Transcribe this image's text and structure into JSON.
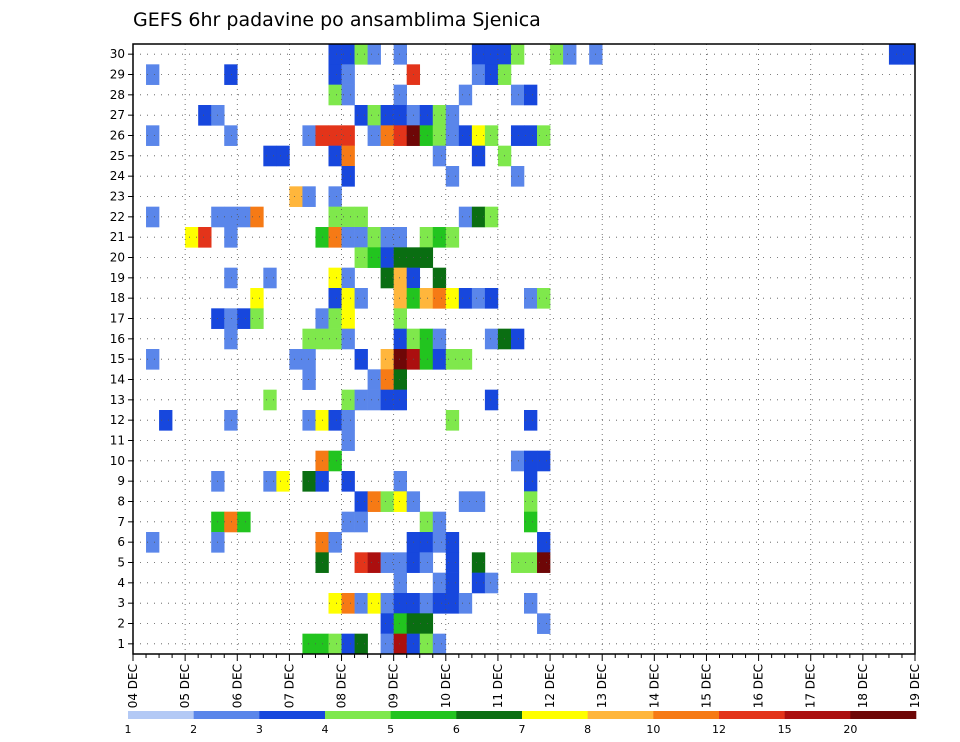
{
  "chart_data": {
    "type": "heatmap",
    "title": "GEFS 6hr padavine po ansamblima Sjenica",
    "xlabel": "",
    "ylabel": "",
    "x_ticks": [
      "04 DEC",
      "05 DEC",
      "06 DEC",
      "07 DEC",
      "08 DEC",
      "09 DEC",
      "10 DEC",
      "11 DEC",
      "12 DEC",
      "13 DEC",
      "14 DEC",
      "15 DEC",
      "16 DEC",
      "17 DEC",
      "18 DEC",
      "19 DEC"
    ],
    "y_ticks": [
      1,
      2,
      3,
      4,
      5,
      6,
      7,
      8,
      9,
      10,
      11,
      12,
      13,
      14,
      15,
      16,
      17,
      18,
      19,
      20,
      21,
      22,
      23,
      24,
      25,
      26,
      27,
      28,
      29,
      30
    ],
    "x_range": [
      "04 DEC 00",
      "19 DEC 00"
    ],
    "x_step_hours": 6,
    "y_range": [
      0,
      30
    ],
    "grid": true,
    "colorbar": {
      "labels": [
        "1",
        "2",
        "3",
        "4",
        "5",
        "6",
        "7",
        "8",
        "10",
        "12",
        "15",
        "20"
      ],
      "colors": [
        "#b3c9f5",
        "#5a86ea",
        "#1747dd",
        "#7fe84c",
        "#22c41f",
        "#0a6e12",
        "#ffff00",
        "#ffb63c",
        "#f67a15",
        "#e3341a",
        "#ab0f0f",
        "#6e0707"
      ]
    },
    "cells": [
      [
        30,
        15,
        2
      ],
      [
        30,
        16,
        2
      ],
      [
        30,
        17,
        3
      ],
      [
        30,
        18,
        1
      ],
      [
        30,
        20,
        1
      ],
      [
        30,
        26,
        2
      ],
      [
        30,
        27,
        2
      ],
      [
        30,
        28,
        2
      ],
      [
        30,
        29,
        3
      ],
      [
        30,
        32,
        3
      ],
      [
        30,
        33,
        1
      ],
      [
        30,
        35,
        1
      ],
      [
        30,
        58,
        2
      ],
      [
        30,
        59,
        2
      ],
      [
        29,
        1,
        1
      ],
      [
        29,
        7,
        2
      ],
      [
        29,
        15,
        2
      ],
      [
        29,
        16,
        1
      ],
      [
        29,
        21,
        9
      ],
      [
        29,
        26,
        1
      ],
      [
        29,
        27,
        2
      ],
      [
        29,
        28,
        3
      ],
      [
        28,
        15,
        3
      ],
      [
        28,
        16,
        1
      ],
      [
        28,
        20,
        1
      ],
      [
        28,
        25,
        1
      ],
      [
        28,
        29,
        1
      ],
      [
        28,
        30,
        2
      ],
      [
        27,
        5,
        2
      ],
      [
        27,
        6,
        1
      ],
      [
        27,
        17,
        2
      ],
      [
        27,
        18,
        3
      ],
      [
        27,
        19,
        2
      ],
      [
        27,
        20,
        2
      ],
      [
        27,
        21,
        1
      ],
      [
        27,
        22,
        2
      ],
      [
        27,
        23,
        3
      ],
      [
        27,
        24,
        1
      ],
      [
        26,
        1,
        1
      ],
      [
        26,
        7,
        1
      ],
      [
        26,
        13,
        1
      ],
      [
        26,
        14,
        9
      ],
      [
        26,
        15,
        9
      ],
      [
        26,
        16,
        9
      ],
      [
        26,
        18,
        1
      ],
      [
        26,
        19,
        8
      ],
      [
        26,
        20,
        9
      ],
      [
        26,
        21,
        11
      ],
      [
        26,
        22,
        4
      ],
      [
        26,
        23,
        3
      ],
      [
        26,
        24,
        1
      ],
      [
        26,
        25,
        2
      ],
      [
        26,
        26,
        6
      ],
      [
        26,
        27,
        3
      ],
      [
        26,
        29,
        2
      ],
      [
        26,
        30,
        2
      ],
      [
        26,
        31,
        3
      ],
      [
        25,
        10,
        2
      ],
      [
        25,
        11,
        2
      ],
      [
        25,
        15,
        2
      ],
      [
        25,
        16,
        8
      ],
      [
        25,
        23,
        1
      ],
      [
        25,
        26,
        2
      ],
      [
        25,
        28,
        3
      ],
      [
        24,
        16,
        2
      ],
      [
        24,
        24,
        1
      ],
      [
        24,
        29,
        1
      ],
      [
        23,
        12,
        7
      ],
      [
        23,
        13,
        1
      ],
      [
        23,
        15,
        1
      ],
      [
        22,
        1,
        1
      ],
      [
        22,
        6,
        1
      ],
      [
        22,
        7,
        1
      ],
      [
        22,
        8,
        1
      ],
      [
        22,
        9,
        8
      ],
      [
        22,
        15,
        3
      ],
      [
        22,
        16,
        3
      ],
      [
        22,
        17,
        3
      ],
      [
        22,
        25,
        1
      ],
      [
        22,
        26,
        5
      ],
      [
        22,
        27,
        3
      ],
      [
        21,
        4,
        6
      ],
      [
        21,
        5,
        9
      ],
      [
        21,
        7,
        1
      ],
      [
        21,
        14,
        4
      ],
      [
        21,
        15,
        8
      ],
      [
        21,
        16,
        1
      ],
      [
        21,
        17,
        1
      ],
      [
        21,
        18,
        3
      ],
      [
        21,
        19,
        1
      ],
      [
        21,
        20,
        1
      ],
      [
        21,
        22,
        3
      ],
      [
        21,
        23,
        4
      ],
      [
        21,
        24,
        3
      ],
      [
        20,
        17,
        3
      ],
      [
        20,
        18,
        4
      ],
      [
        20,
        19,
        2
      ],
      [
        20,
        20,
        5
      ],
      [
        20,
        21,
        5
      ],
      [
        20,
        22,
        5
      ],
      [
        19,
        7,
        1
      ],
      [
        19,
        10,
        1
      ],
      [
        19,
        15,
        6
      ],
      [
        19,
        16,
        1
      ],
      [
        19,
        19,
        5
      ],
      [
        19,
        20,
        7
      ],
      [
        19,
        21,
        2
      ],
      [
        19,
        23,
        5
      ],
      [
        18,
        9,
        6
      ],
      [
        18,
        15,
        2
      ],
      [
        18,
        16,
        6
      ],
      [
        18,
        17,
        1
      ],
      [
        18,
        20,
        7
      ],
      [
        18,
        21,
        4
      ],
      [
        18,
        22,
        7
      ],
      [
        18,
        23,
        8
      ],
      [
        18,
        24,
        6
      ],
      [
        18,
        25,
        2
      ],
      [
        18,
        26,
        1
      ],
      [
        18,
        27,
        2
      ],
      [
        18,
        30,
        1
      ],
      [
        18,
        31,
        3
      ],
      [
        17,
        6,
        2
      ],
      [
        17,
        7,
        1
      ],
      [
        17,
        8,
        2
      ],
      [
        17,
        9,
        3
      ],
      [
        17,
        14,
        1
      ],
      [
        17,
        15,
        3
      ],
      [
        17,
        16,
        6
      ],
      [
        17,
        20,
        3
      ],
      [
        16,
        7,
        1
      ],
      [
        16,
        13,
        3
      ],
      [
        16,
        14,
        3
      ],
      [
        16,
        15,
        3
      ],
      [
        16,
        16,
        1
      ],
      [
        16,
        20,
        2
      ],
      [
        16,
        21,
        3
      ],
      [
        16,
        22,
        4
      ],
      [
        16,
        23,
        1
      ],
      [
        16,
        27,
        1
      ],
      [
        16,
        28,
        5
      ],
      [
        16,
        29,
        2
      ],
      [
        15,
        1,
        1
      ],
      [
        15,
        12,
        1
      ],
      [
        15,
        13,
        1
      ],
      [
        15,
        17,
        2
      ],
      [
        15,
        19,
        7
      ],
      [
        15,
        20,
        11
      ],
      [
        15,
        21,
        10
      ],
      [
        15,
        22,
        4
      ],
      [
        15,
        23,
        2
      ],
      [
        15,
        24,
        3
      ],
      [
        15,
        25,
        3
      ],
      [
        14,
        13,
        1
      ],
      [
        14,
        18,
        1
      ],
      [
        14,
        19,
        8
      ],
      [
        14,
        20,
        5
      ],
      [
        13,
        10,
        3
      ],
      [
        13,
        16,
        3
      ],
      [
        13,
        17,
        1
      ],
      [
        13,
        18,
        1
      ],
      [
        13,
        19,
        2
      ],
      [
        13,
        20,
        2
      ],
      [
        13,
        27,
        2
      ],
      [
        12,
        2,
        2
      ],
      [
        12,
        7,
        1
      ],
      [
        12,
        13,
        1
      ],
      [
        12,
        14,
        6
      ],
      [
        12,
        15,
        2
      ],
      [
        12,
        16,
        1
      ],
      [
        12,
        24,
        3
      ],
      [
        12,
        30,
        2
      ],
      [
        11,
        16,
        1
      ],
      [
        10,
        14,
        8
      ],
      [
        10,
        15,
        4
      ],
      [
        10,
        29,
        1
      ],
      [
        10,
        30,
        2
      ],
      [
        10,
        31,
        2
      ],
      [
        9,
        6,
        1
      ],
      [
        9,
        10,
        1
      ],
      [
        9,
        11,
        6
      ],
      [
        9,
        13,
        5
      ],
      [
        9,
        14,
        2
      ],
      [
        9,
        16,
        2
      ],
      [
        9,
        20,
        1
      ],
      [
        9,
        30,
        2
      ],
      [
        8,
        17,
        2
      ],
      [
        8,
        18,
        8
      ],
      [
        8,
        19,
        3
      ],
      [
        8,
        20,
        6
      ],
      [
        8,
        21,
        1
      ],
      [
        8,
        25,
        1
      ],
      [
        8,
        26,
        1
      ],
      [
        8,
        30,
        3
      ],
      [
        7,
        6,
        4
      ],
      [
        7,
        7,
        8
      ],
      [
        7,
        8,
        4
      ],
      [
        7,
        16,
        1
      ],
      [
        7,
        17,
        1
      ],
      [
        7,
        22,
        3
      ],
      [
        7,
        23,
        1
      ],
      [
        7,
        30,
        4
      ],
      [
        6,
        1,
        1
      ],
      [
        6,
        6,
        1
      ],
      [
        6,
        14,
        8
      ],
      [
        6,
        15,
        1
      ],
      [
        6,
        21,
        2
      ],
      [
        6,
        22,
        2
      ],
      [
        6,
        23,
        1
      ],
      [
        6,
        24,
        2
      ],
      [
        6,
        31,
        2
      ],
      [
        5,
        14,
        5
      ],
      [
        5,
        17,
        9
      ],
      [
        5,
        18,
        10
      ],
      [
        5,
        19,
        1
      ],
      [
        5,
        20,
        1
      ],
      [
        5,
        21,
        2
      ],
      [
        5,
        22,
        1
      ],
      [
        5,
        24,
        2
      ],
      [
        5,
        26,
        5
      ],
      [
        5,
        29,
        3
      ],
      [
        5,
        30,
        3
      ],
      [
        5,
        31,
        11
      ],
      [
        4,
        20,
        1
      ],
      [
        4,
        23,
        1
      ],
      [
        4,
        24,
        2
      ],
      [
        4,
        26,
        2
      ],
      [
        4,
        27,
        1
      ],
      [
        3,
        15,
        6
      ],
      [
        3,
        16,
        8
      ],
      [
        3,
        17,
        1
      ],
      [
        3,
        18,
        6
      ],
      [
        3,
        19,
        1
      ],
      [
        3,
        20,
        2
      ],
      [
        3,
        21,
        2
      ],
      [
        3,
        22,
        1
      ],
      [
        3,
        23,
        2
      ],
      [
        3,
        24,
        2
      ],
      [
        3,
        25,
        1
      ],
      [
        3,
        30,
        1
      ],
      [
        2,
        19,
        2
      ],
      [
        2,
        20,
        4
      ],
      [
        2,
        21,
        5
      ],
      [
        2,
        22,
        5
      ],
      [
        2,
        31,
        1
      ],
      [
        1,
        13,
        4
      ],
      [
        1,
        14,
        4
      ],
      [
        1,
        15,
        3
      ],
      [
        1,
        16,
        2
      ],
      [
        1,
        17,
        5
      ],
      [
        1,
        19,
        1
      ],
      [
        1,
        20,
        10
      ],
      [
        1,
        21,
        2
      ],
      [
        1,
        22,
        3
      ],
      [
        1,
        23,
        1
      ]
    ]
  }
}
